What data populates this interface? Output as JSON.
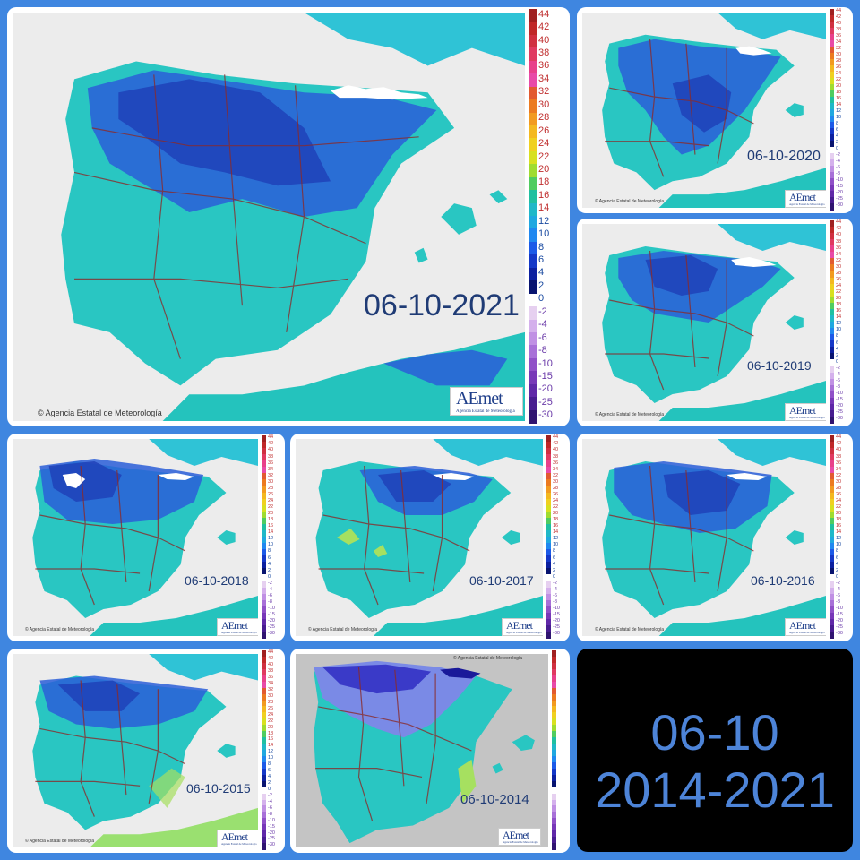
{
  "collage_title": {
    "line1": "06-10",
    "line2": "2014-2021"
  },
  "maps": [
    {
      "id": "2021",
      "date": "06-10-2021",
      "copyright": "© Agencia Estatal de Meteorología",
      "logo": "AEmet",
      "logo_sub": "Agencia Estatal de Meteorología"
    },
    {
      "id": "2020",
      "date": "06-10-2020",
      "copyright": "© Agencia Estatal de Meteorología",
      "logo": "AEmet",
      "logo_sub": "Agencia Estatal de Meteorología"
    },
    {
      "id": "2019",
      "date": "06-10-2019",
      "copyright": "© Agencia Estatal de Meteorología",
      "logo": "AEmet",
      "logo_sub": "Agencia Estatal de Meteorología"
    },
    {
      "id": "2018",
      "date": "06-10-2018",
      "copyright": "© Agencia Estatal de Meteorología",
      "logo": "AEmet",
      "logo_sub": "Agencia Estatal de Meteorología"
    },
    {
      "id": "2017",
      "date": "06-10-2017",
      "copyright": "© Agencia Estatal de Meteorología",
      "logo": "AEmet",
      "logo_sub": "Agencia Estatal de Meteorología"
    },
    {
      "id": "2016",
      "date": "06-10-2016",
      "copyright": "© Agencia Estatal de Meteorología",
      "logo": "AEmet",
      "logo_sub": "Agencia Estatal de Meteorología"
    },
    {
      "id": "2015",
      "date": "06-10-2015",
      "copyright": "© Agencia Estatal de Meteorología",
      "logo": "AEmet",
      "logo_sub": "Agencia Estatal de Meteorología"
    },
    {
      "id": "2014",
      "date": "06-10-2014",
      "copyright": "© Agencia Estatal de Meteorología",
      "logo": "AEmet",
      "logo_sub": "Agencia Estatal de Meteorología"
    }
  ],
  "legend": {
    "ticks": [
      "44",
      "42",
      "40",
      "38",
      "36",
      "34",
      "32",
      "30",
      "28",
      "26",
      "24",
      "22",
      "20",
      "18",
      "16",
      "14",
      "12",
      "10",
      "8",
      "6",
      "4",
      "2",
      "0",
      "-2",
      "-4",
      "-6",
      "-8",
      "-10",
      "-15",
      "-20",
      "-25",
      "-30"
    ],
    "colors": [
      "#a02020",
      "#c02828",
      "#d03040",
      "#e03a60",
      "#e8408a",
      "#e84aa8",
      "#e25a30",
      "#ec7a20",
      "#f29a20",
      "#f4b820",
      "#f0d020",
      "#d8e020",
      "#a0dc30",
      "#50cc60",
      "#20c0a0",
      "#20b8c8",
      "#20a8e0",
      "#2088f0",
      "#1c5ae8",
      "#1438c8",
      "#0c20a0",
      "#081470",
      "#ffffff",
      "#e6d0f0",
      "#d4b0ec",
      "#c090e4",
      "#a870d8",
      "#9050c8",
      "#7838b8",
      "#6028a8",
      "#481c90",
      "#301470"
    ],
    "zero_color": "#f7f0ff"
  }
}
